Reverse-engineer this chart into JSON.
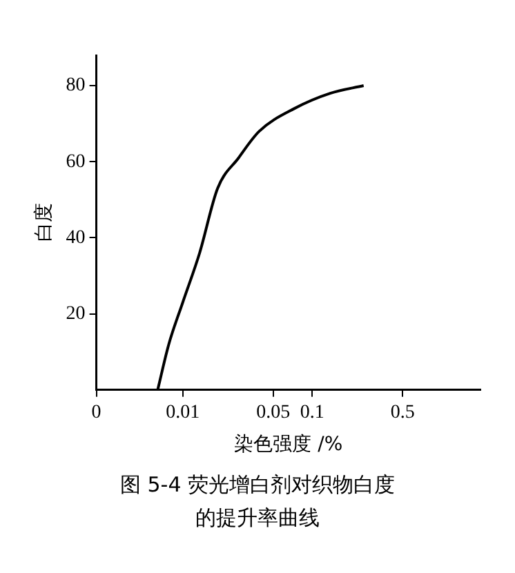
{
  "chart_data": {
    "type": "line",
    "title": "图 5-4  荧光增白剂对织物白度的提升率曲线",
    "xlabel": "染色强度 /%",
    "ylabel": "白度",
    "log": "x",
    "x": [
      0.0064,
      0.0078,
      0.01,
      0.0135,
      0.0186,
      0.027,
      0.039,
      0.073,
      0.138,
      0.25
    ],
    "series": [
      {
        "color": "#000000",
        "values": [
          0,
          12,
          23,
          36,
          53,
          61,
          68,
          74,
          78,
          80
        ]
      }
    ],
    "xlim": [
      0.00215,
      2
    ],
    "xticks": [
      {
        "value": 0.00215,
        "label": "0"
      },
      0.01,
      0.05,
      0.1,
      0.5
    ],
    "ylim": [
      0,
      88
    ],
    "yticks": [
      20,
      40,
      60,
      80
    ],
    "grid": false,
    "legend": false,
    "marker": "none",
    "line_style": "solid"
  }
}
